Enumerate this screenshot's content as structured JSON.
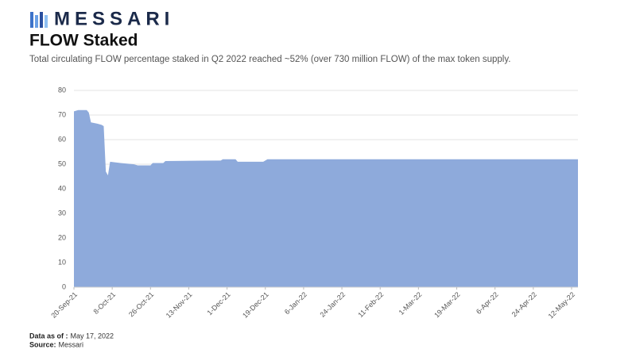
{
  "brand": "MESSARI",
  "notes": [
    {
      "label": "Data as of :",
      "value": "May 17, 2022"
    },
    {
      "label": "Source:",
      "value": "Messari"
    }
  ],
  "chart_data": {
    "type": "area",
    "title": "FLOW Staked",
    "subtitle": "Total circulating FLOW percentage staked in Q2 2022 reached ~52% (over 730 million FLOW) of the max token supply.",
    "color": "#8eaadb",
    "grid": true,
    "x": [
      "2021-09-20",
      "2021-09-22",
      "2021-09-26",
      "2021-09-27",
      "2021-09-28",
      "2021-10-01",
      "2021-10-03",
      "2021-10-04",
      "2021-10-05",
      "2021-10-06",
      "2021-10-07",
      "2021-10-12",
      "2021-10-18",
      "2021-10-20",
      "2021-10-26",
      "2021-10-27",
      "2021-11-01",
      "2021-11-02",
      "2021-11-28",
      "2021-11-29",
      "2021-12-05",
      "2021-12-06",
      "2021-12-18",
      "2021-12-20",
      "2022-05-15"
    ],
    "values": [
      71.5,
      72,
      72,
      71,
      67,
      66.5,
      66,
      65.5,
      47,
      45.5,
      51,
      50.5,
      50,
      49.5,
      49.5,
      50.5,
      50.5,
      51.3,
      51.5,
      52,
      52,
      51,
      51,
      52,
      52
    ],
    "xlim": [
      "2021-09-20",
      "2022-05-15"
    ],
    "xticks": [
      {
        "value": "2021-09-20",
        "label": "20-Sep-21"
      },
      {
        "value": "2021-10-08",
        "label": "8-Oct-21"
      },
      {
        "value": "2021-10-26",
        "label": "26-Oct-21"
      },
      {
        "value": "2021-11-13",
        "label": "13-Nov-21"
      },
      {
        "value": "2021-12-01",
        "label": "1-Dec-21"
      },
      {
        "value": "2021-12-19",
        "label": "19-Dec-21"
      },
      {
        "value": "2022-01-06",
        "label": "6-Jan-22"
      },
      {
        "value": "2022-01-24",
        "label": "24-Jan-22"
      },
      {
        "value": "2022-02-11",
        "label": "11-Feb-22"
      },
      {
        "value": "2022-03-01",
        "label": "1-Mar-22"
      },
      {
        "value": "2022-03-19",
        "label": "19-Mar-22"
      },
      {
        "value": "2022-04-06",
        "label": "6-Apr-22"
      },
      {
        "value": "2022-04-24",
        "label": "24-Apr-22"
      },
      {
        "value": "2022-05-12",
        "label": "12-May-22"
      }
    ],
    "ylim": [
      0,
      80
    ],
    "yticks": [
      0,
      10,
      20,
      30,
      40,
      50,
      60,
      70,
      80
    ]
  }
}
